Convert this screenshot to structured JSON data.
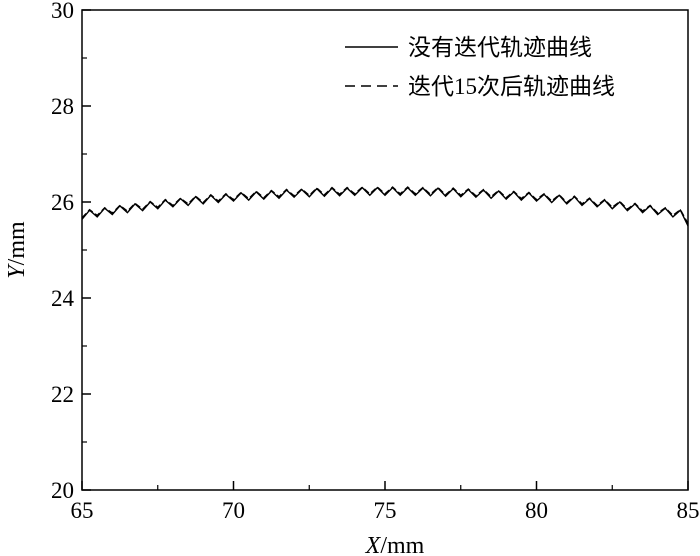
{
  "chart_data": {
    "type": "line",
    "title": "",
    "xlabel_italic": "X",
    "xlabel_unit": "/mm",
    "ylabel_italic": "Y",
    "ylabel_unit": "/mm",
    "xlim": [
      65,
      85
    ],
    "ylim": [
      20,
      30
    ],
    "xticks": [
      65,
      70,
      75,
      80,
      85
    ],
    "yticks": [
      20,
      22,
      24,
      26,
      28,
      30
    ],
    "grid": false,
    "legend_position": "top-right",
    "x": {
      "start": 65,
      "step": 0.25
    },
    "series": [
      {
        "name": "没有迭代轨迹曲线",
        "style": "solid",
        "values": [
          25.64,
          25.83,
          25.69,
          25.87,
          25.74,
          25.92,
          25.78,
          25.96,
          25.82,
          26.0,
          25.86,
          26.04,
          25.9,
          26.07,
          25.93,
          26.11,
          25.96,
          26.14,
          25.99,
          26.16,
          26.02,
          26.19,
          26.04,
          26.21,
          26.06,
          26.23,
          26.08,
          26.25,
          26.1,
          26.26,
          26.11,
          26.28,
          26.12,
          26.29,
          26.13,
          26.29,
          26.14,
          26.3,
          26.14,
          26.3,
          26.14,
          26.3,
          26.14,
          26.3,
          26.14,
          26.29,
          26.13,
          26.29,
          26.12,
          26.28,
          26.11,
          26.26,
          26.1,
          26.25,
          26.08,
          26.23,
          26.06,
          26.21,
          26.04,
          26.19,
          26.02,
          26.16,
          25.99,
          26.14,
          25.96,
          26.11,
          25.93,
          26.07,
          25.9,
          26.04,
          25.86,
          26.0,
          25.82,
          25.96,
          25.78,
          25.92,
          25.74,
          25.87,
          25.69,
          25.83,
          25.5
        ]
      },
      {
        "name": "迭代15次后轨迹曲线",
        "style": "dashed",
        "values": [
          25.67,
          25.84,
          25.72,
          25.88,
          25.77,
          25.93,
          25.81,
          25.97,
          25.85,
          26.01,
          25.89,
          26.05,
          25.93,
          26.08,
          25.96,
          26.12,
          25.99,
          26.15,
          26.02,
          26.17,
          26.05,
          26.2,
          26.07,
          26.22,
          26.09,
          26.24,
          26.11,
          26.26,
          26.13,
          26.27,
          26.14,
          26.29,
          26.15,
          26.3,
          26.16,
          26.3,
          26.17,
          26.31,
          26.17,
          26.31,
          26.17,
          26.31,
          26.17,
          26.31,
          26.17,
          26.3,
          26.16,
          26.3,
          26.15,
          26.29,
          26.14,
          26.27,
          26.13,
          26.26,
          26.11,
          26.24,
          26.09,
          26.22,
          26.07,
          26.2,
          26.05,
          26.17,
          26.02,
          26.15,
          25.99,
          26.12,
          25.96,
          26.08,
          25.93,
          26.05,
          25.89,
          26.01,
          25.85,
          25.97,
          25.81,
          25.93,
          25.77,
          25.88,
          25.72,
          25.84,
          25.55
        ]
      }
    ]
  }
}
